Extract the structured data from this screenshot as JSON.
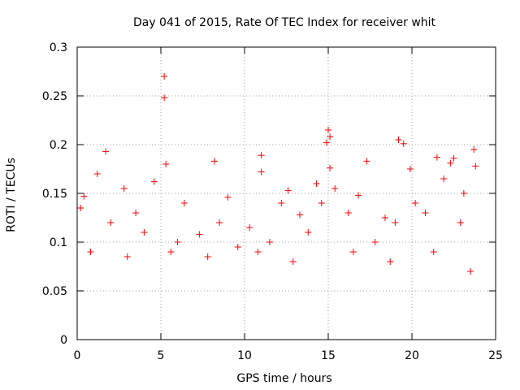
{
  "chart_data": {
    "type": "scatter",
    "title": "Day 041 of 2015, Rate Of TEC Index for receiver whit",
    "xlabel": "GPS time / hours",
    "ylabel": "ROTI / TECUs",
    "xlim": [
      0,
      25
    ],
    "ylim": [
      0,
      0.3
    ],
    "x_ticks": [
      "0",
      "5",
      "10",
      "15",
      "20",
      "25"
    ],
    "y_ticks": [
      "0",
      "0.05",
      "0.1",
      "0.15",
      "0.2",
      "0.25",
      "0.3"
    ],
    "grid": true,
    "marker": "+",
    "color": "#ff0000",
    "series": [
      {
        "points": [
          [
            5.2,
            0.27
          ],
          [
            5.2,
            0.248
          ],
          [
            15.0,
            0.215
          ],
          [
            15.1,
            0.208
          ],
          [
            14.9,
            0.202
          ],
          [
            19.2,
            0.205
          ],
          [
            19.5,
            0.201
          ],
          [
            1.7,
            0.193
          ],
          [
            23.7,
            0.195
          ],
          [
            11.0,
            0.189
          ],
          [
            21.5,
            0.187
          ],
          [
            22.5,
            0.186
          ],
          [
            8.2,
            0.183
          ],
          [
            17.3,
            0.183
          ],
          [
            22.3,
            0.181
          ],
          [
            5.3,
            0.18
          ],
          [
            23.8,
            0.178
          ],
          [
            15.1,
            0.176
          ],
          [
            11.0,
            0.172
          ],
          [
            19.9,
            0.175
          ],
          [
            1.2,
            0.17
          ],
          [
            4.6,
            0.162
          ],
          [
            2.8,
            0.155
          ],
          [
            12.6,
            0.153
          ],
          [
            16.8,
            0.148
          ],
          [
            0.4,
            0.147
          ],
          [
            9.0,
            0.146
          ],
          [
            6.4,
            0.14
          ],
          [
            3.5,
            0.13
          ],
          [
            0.2,
            0.135
          ],
          [
            7.3,
            0.108
          ],
          [
            10.3,
            0.115
          ],
          [
            13.3,
            0.128
          ],
          [
            18.4,
            0.125
          ],
          [
            20.8,
            0.13
          ],
          [
            14.3,
            0.16
          ],
          [
            15.4,
            0.155
          ],
          [
            12.2,
            0.14
          ],
          [
            21.9,
            0.165
          ],
          [
            23.1,
            0.15
          ],
          [
            2.0,
            0.12
          ],
          [
            4.0,
            0.11
          ],
          [
            6.0,
            0.1
          ],
          [
            8.5,
            0.12
          ],
          [
            9.6,
            0.095
          ],
          [
            11.5,
            0.1
          ],
          [
            13.8,
            0.11
          ],
          [
            16.2,
            0.13
          ],
          [
            17.8,
            0.1
          ],
          [
            19.0,
            0.12
          ],
          [
            20.2,
            0.14
          ],
          [
            22.9,
            0.12
          ],
          [
            0.8,
            0.09
          ],
          [
            3.0,
            0.085
          ],
          [
            5.6,
            0.09
          ],
          [
            7.8,
            0.085
          ],
          [
            10.8,
            0.09
          ],
          [
            12.9,
            0.08
          ],
          [
            14.6,
            0.14
          ],
          [
            16.5,
            0.09
          ],
          [
            18.7,
            0.08
          ],
          [
            21.3,
            0.09
          ],
          [
            23.5,
            0.07
          ]
        ]
      }
    ]
  }
}
